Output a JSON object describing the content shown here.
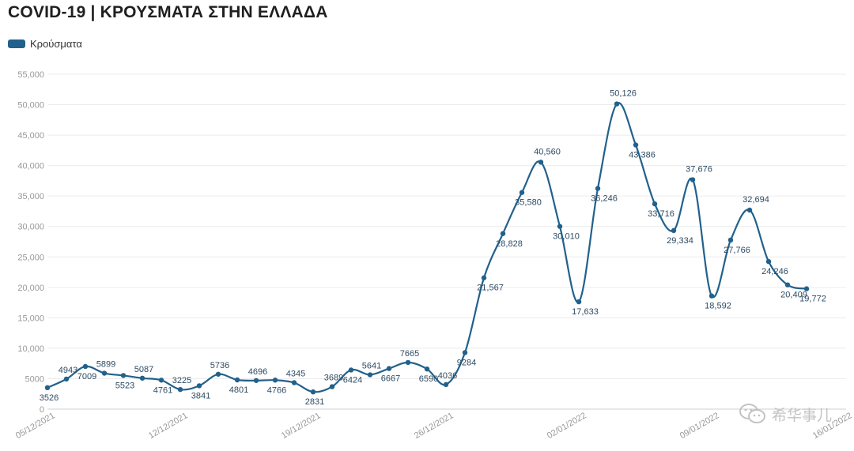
{
  "chart_data": {
    "type": "line",
    "title": "COVID-19 | ΚΡΟΥΣΜΑΤΑ ΣΤΗΝ ΕΛΛΑΔΑ",
    "series": [
      {
        "name": "Κρούσματα",
        "color": "#21618c",
        "values": [
          3526,
          4943,
          7009,
          5899,
          5523,
          5087,
          4761,
          3225,
          3841,
          5736,
          4801,
          4696,
          4766,
          4345,
          2831,
          3689,
          6424,
          5641,
          6667,
          7665,
          6590,
          4036,
          9284,
          21567,
          28828,
          35580,
          40560,
          30010,
          17633,
          36246,
          50126,
          43386,
          33716,
          29334,
          37676,
          18592,
          27766,
          32694,
          24246,
          20409,
          19772
        ],
        "labels": [
          "3526",
          "4943",
          "7009",
          "5899",
          "5523",
          "5087",
          "4761",
          "3225",
          "3841",
          "5736",
          "4801",
          "4696",
          "4766",
          "4345",
          "2831",
          "3689",
          "6424",
          "5641",
          "6667",
          "7665",
          "6590",
          "4036",
          "9284",
          "21,567",
          "28,828",
          "35,580",
          "40,560",
          "30,010",
          "17,633",
          "36,246",
          "50,126",
          "43,386",
          "33,716",
          "29,334",
          "37,676",
          "18,592",
          "27,766",
          "32,694",
          "24,246",
          "20,409",
          "19,772"
        ]
      }
    ],
    "x_start": "05/12/2021",
    "x_ticks": [
      "05/12/2021",
      "12/12/2021",
      "19/12/2021",
      "26/12/2021",
      "02/01/2022",
      "09/01/2022",
      "16/01/2022"
    ],
    "y_ticks": [
      "0",
      "5000",
      "10,000",
      "15,000",
      "20,000",
      "25,000",
      "30,000",
      "35,000",
      "40,000",
      "45,000",
      "50,000",
      "55,000"
    ],
    "ylim": [
      0,
      55000
    ],
    "grid": true,
    "legend": "top-left"
  },
  "watermark": {
    "text": "希华事儿",
    "icon": "wechat-icon"
  }
}
